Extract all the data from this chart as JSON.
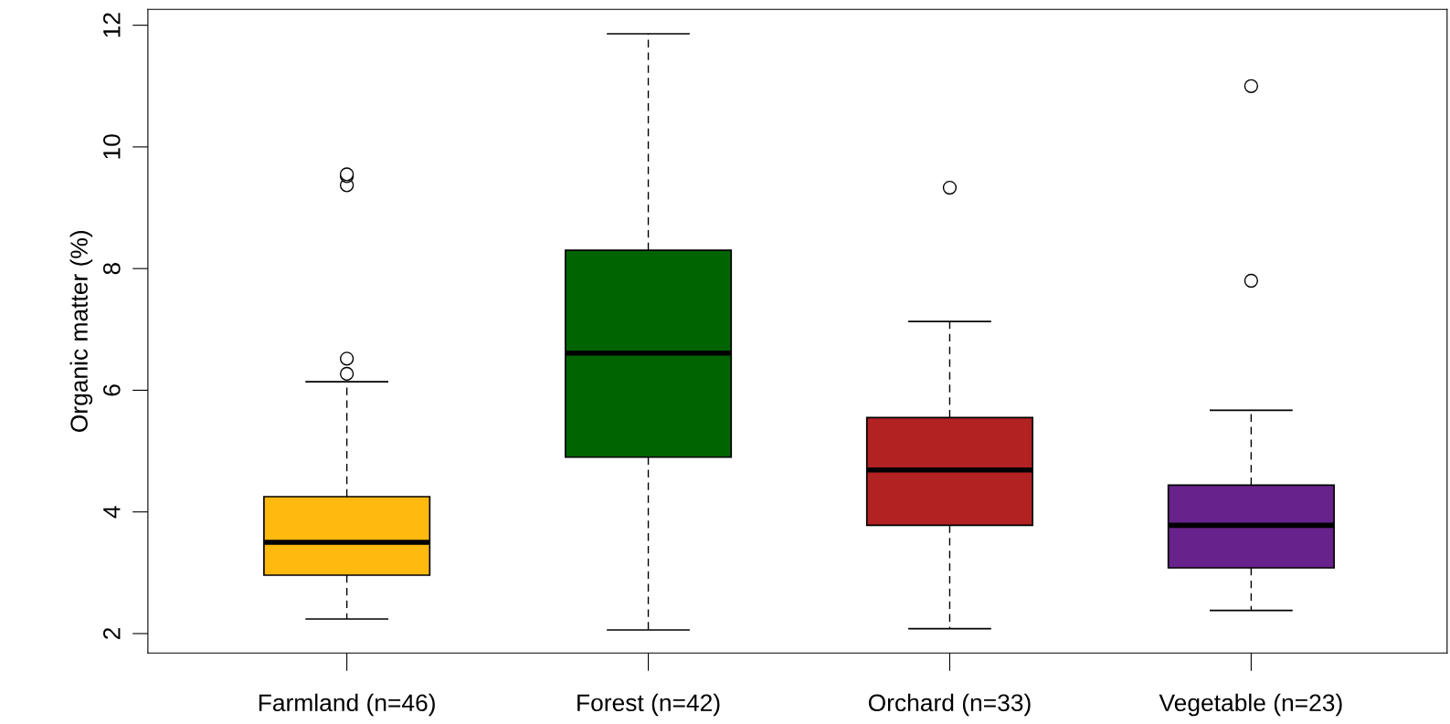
{
  "chart_data": {
    "type": "box",
    "ylabel": "Organic matter (%)",
    "categories": [
      "Farmland (n=46)",
      "Forest (n=42)",
      "Orchard (n=33)",
      "Vegetable (n=23)"
    ],
    "colors": [
      "#ffb90f",
      "#006400",
      "#b22222",
      "#68228b"
    ],
    "boxes": [
      {
        "low": 2.24,
        "q1": 2.96,
        "median": 3.5,
        "q3": 4.25,
        "high": 6.14,
        "outliers": [
          6.27,
          6.52,
          9.37,
          9.52,
          9.55
        ]
      },
      {
        "low": 2.06,
        "q1": 4.9,
        "median": 6.61,
        "q3": 8.3,
        "high": 11.86
      },
      {
        "low": 2.08,
        "q1": 3.78,
        "median": 4.69,
        "q3": 5.55,
        "high": 7.13,
        "outliers": [
          9.33
        ]
      },
      {
        "low": 2.38,
        "q1": 3.08,
        "median": 3.78,
        "q3": 4.44,
        "high": 5.67,
        "outliers": [
          7.8,
          11.0
        ]
      }
    ],
    "ylim": [
      1.68,
      12.26
    ],
    "yticks": [
      2,
      4,
      6,
      8,
      10,
      12
    ],
    "grid": false,
    "line_style": "dashed"
  }
}
